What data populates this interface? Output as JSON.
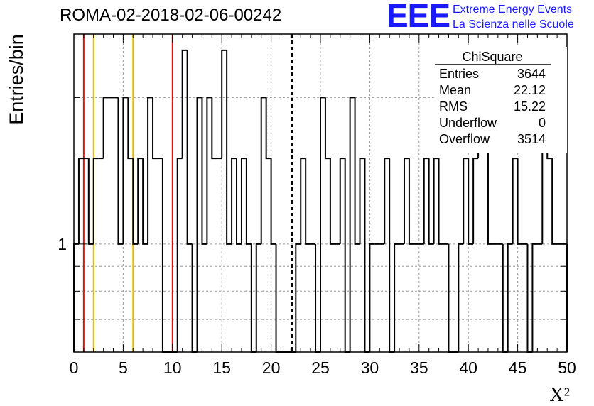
{
  "title": "ROMA-02-2018-02-06-00242",
  "logo": {
    "mark": "EEE",
    "line1": "Extreme Energy Events",
    "line2": "La Scienza nelle Scuole"
  },
  "colors": {
    "background": "#ffffff",
    "histogram": "#000000",
    "grid": "#9a9a9a",
    "red_line": "#dd1111",
    "orange_line": "#f0b800",
    "logo": "#1a1aff"
  },
  "chart_data": {
    "type": "histogram",
    "title": "ROMA-02-2018-02-06-00242",
    "xlabel": "X²",
    "ylabel": "Entries/bin",
    "xlim": [
      0,
      50
    ],
    "ylim": [
      0.6,
      2.7
    ],
    "y_scale": "log",
    "grid": true,
    "x_ticks": [
      "0",
      "5",
      "10",
      "15",
      "20",
      "25",
      "30",
      "35",
      "40",
      "45",
      "50"
    ],
    "y_tick_labels": [
      {
        "value": 1,
        "label": "1"
      }
    ],
    "bin_width": 0.5,
    "bins": [
      {
        "x": 0.0,
        "y": 1
      },
      {
        "x": 0.5,
        "y": 1.5
      },
      {
        "x": 1.0,
        "y": 1.5
      },
      {
        "x": 1.5,
        "y": 1
      },
      {
        "x": 2.0,
        "y": 1.5
      },
      {
        "x": 2.5,
        "y": 1.5
      },
      {
        "x": 3.0,
        "y": 2
      },
      {
        "x": 3.5,
        "y": 2
      },
      {
        "x": 4.0,
        "y": 2
      },
      {
        "x": 4.5,
        "y": 1
      },
      {
        "x": 5.0,
        "y": 2
      },
      {
        "x": 5.5,
        "y": 1.5
      },
      {
        "x": 6.0,
        "y": 1
      },
      {
        "x": 6.5,
        "y": 1.5
      },
      {
        "x": 7.0,
        "y": 1
      },
      {
        "x": 7.5,
        "y": 2
      },
      {
        "x": 8.0,
        "y": 1.5
      },
      {
        "x": 8.5,
        "y": 1.5
      },
      {
        "x": 9.0,
        "y": 0.6
      },
      {
        "x": 9.5,
        "y": 0.6
      },
      {
        "x": 10.0,
        "y": 0.6
      },
      {
        "x": 10.5,
        "y": 1.5
      },
      {
        "x": 11.0,
        "y": 2.5
      },
      {
        "x": 11.5,
        "y": 1
      },
      {
        "x": 12.0,
        "y": 0.6
      },
      {
        "x": 12.5,
        "y": 2
      },
      {
        "x": 13.0,
        "y": 1
      },
      {
        "x": 13.5,
        "y": 2
      },
      {
        "x": 14.0,
        "y": 1.5
      },
      {
        "x": 14.5,
        "y": 1.5
      },
      {
        "x": 15.0,
        "y": 2.5
      },
      {
        "x": 15.5,
        "y": 1
      },
      {
        "x": 16.0,
        "y": 1.5
      },
      {
        "x": 16.5,
        "y": 1
      },
      {
        "x": 17.0,
        "y": 1.5
      },
      {
        "x": 17.5,
        "y": 1
      },
      {
        "x": 18.0,
        "y": 0.6
      },
      {
        "x": 18.5,
        "y": 1
      },
      {
        "x": 19.0,
        "y": 2
      },
      {
        "x": 19.5,
        "y": 1.5
      },
      {
        "x": 20.0,
        "y": 1
      },
      {
        "x": 20.5,
        "y": 0.6
      },
      {
        "x": 21.0,
        "y": 0.6
      },
      {
        "x": 21.5,
        "y": 0.6
      },
      {
        "x": 22.0,
        "y": 0.6
      },
      {
        "x": 22.5,
        "y": 1
      },
      {
        "x": 23.0,
        "y": 1.5
      },
      {
        "x": 23.5,
        "y": 1
      },
      {
        "x": 24.0,
        "y": 1
      },
      {
        "x": 24.5,
        "y": 0.6
      },
      {
        "x": 25.0,
        "y": 2
      },
      {
        "x": 25.5,
        "y": 1.5
      },
      {
        "x": 26.0,
        "y": 1
      },
      {
        "x": 26.5,
        "y": 1
      },
      {
        "x": 27.0,
        "y": 1.5
      },
      {
        "x": 27.5,
        "y": 0.6
      },
      {
        "x": 28.0,
        "y": 2
      },
      {
        "x": 28.5,
        "y": 1
      },
      {
        "x": 29.0,
        "y": 1.5
      },
      {
        "x": 29.5,
        "y": 0.6
      },
      {
        "x": 30.0,
        "y": 1
      },
      {
        "x": 30.5,
        "y": 1
      },
      {
        "x": 31.0,
        "y": 1
      },
      {
        "x": 31.5,
        "y": 1.5
      },
      {
        "x": 32.0,
        "y": 0.6
      },
      {
        "x": 32.5,
        "y": 1
      },
      {
        "x": 33.0,
        "y": 1
      },
      {
        "x": 33.5,
        "y": 1.5
      },
      {
        "x": 34.0,
        "y": 1
      },
      {
        "x": 34.5,
        "y": 1
      },
      {
        "x": 35.0,
        "y": 1
      },
      {
        "x": 35.5,
        "y": 1.5
      },
      {
        "x": 36.0,
        "y": 1
      },
      {
        "x": 36.5,
        "y": 1.5
      },
      {
        "x": 37.0,
        "y": 1
      },
      {
        "x": 37.5,
        "y": 1
      },
      {
        "x": 38.0,
        "y": 0.6
      },
      {
        "x": 38.5,
        "y": 0.6
      },
      {
        "x": 39.0,
        "y": 1
      },
      {
        "x": 39.5,
        "y": 1.5
      },
      {
        "x": 40.0,
        "y": 1
      },
      {
        "x": 40.5,
        "y": 1.5
      },
      {
        "x": 41.0,
        "y": 2
      },
      {
        "x": 41.5,
        "y": 2
      },
      {
        "x": 42.0,
        "y": 1
      },
      {
        "x": 42.5,
        "y": 1
      },
      {
        "x": 43.0,
        "y": 1
      },
      {
        "x": 43.5,
        "y": 0.6
      },
      {
        "x": 44.0,
        "y": 1
      },
      {
        "x": 44.5,
        "y": 1.5
      },
      {
        "x": 45.0,
        "y": 1
      },
      {
        "x": 45.5,
        "y": 1
      },
      {
        "x": 46.0,
        "y": 0.6
      },
      {
        "x": 46.5,
        "y": 1
      },
      {
        "x": 47.0,
        "y": 1
      },
      {
        "x": 47.5,
        "y": 2.5
      },
      {
        "x": 48.0,
        "y": 1.5
      },
      {
        "x": 48.5,
        "y": 1
      },
      {
        "x": 49.0,
        "y": 1
      },
      {
        "x": 49.5,
        "y": 1
      }
    ],
    "vertical_lines": [
      {
        "x": 1,
        "color": "#dd1111",
        "style": "solid"
      },
      {
        "x": 2,
        "color": "#f0b800",
        "style": "solid"
      },
      {
        "x": 6,
        "color": "#f0b800",
        "style": "solid"
      },
      {
        "x": 10,
        "color": "#dd1111",
        "style": "solid"
      },
      {
        "x": 22.12,
        "color": "#000000",
        "style": "dashed"
      }
    ],
    "stats_box": {
      "title": "ChiSquare",
      "rows": [
        {
          "label": "Entries",
          "value": "3644"
        },
        {
          "label": "Mean",
          "value": "22.12"
        },
        {
          "label": "RMS",
          "value": "15.22"
        },
        {
          "label": "Underflow",
          "value": "0"
        },
        {
          "label": "Overflow",
          "value": "3514"
        }
      ]
    }
  }
}
